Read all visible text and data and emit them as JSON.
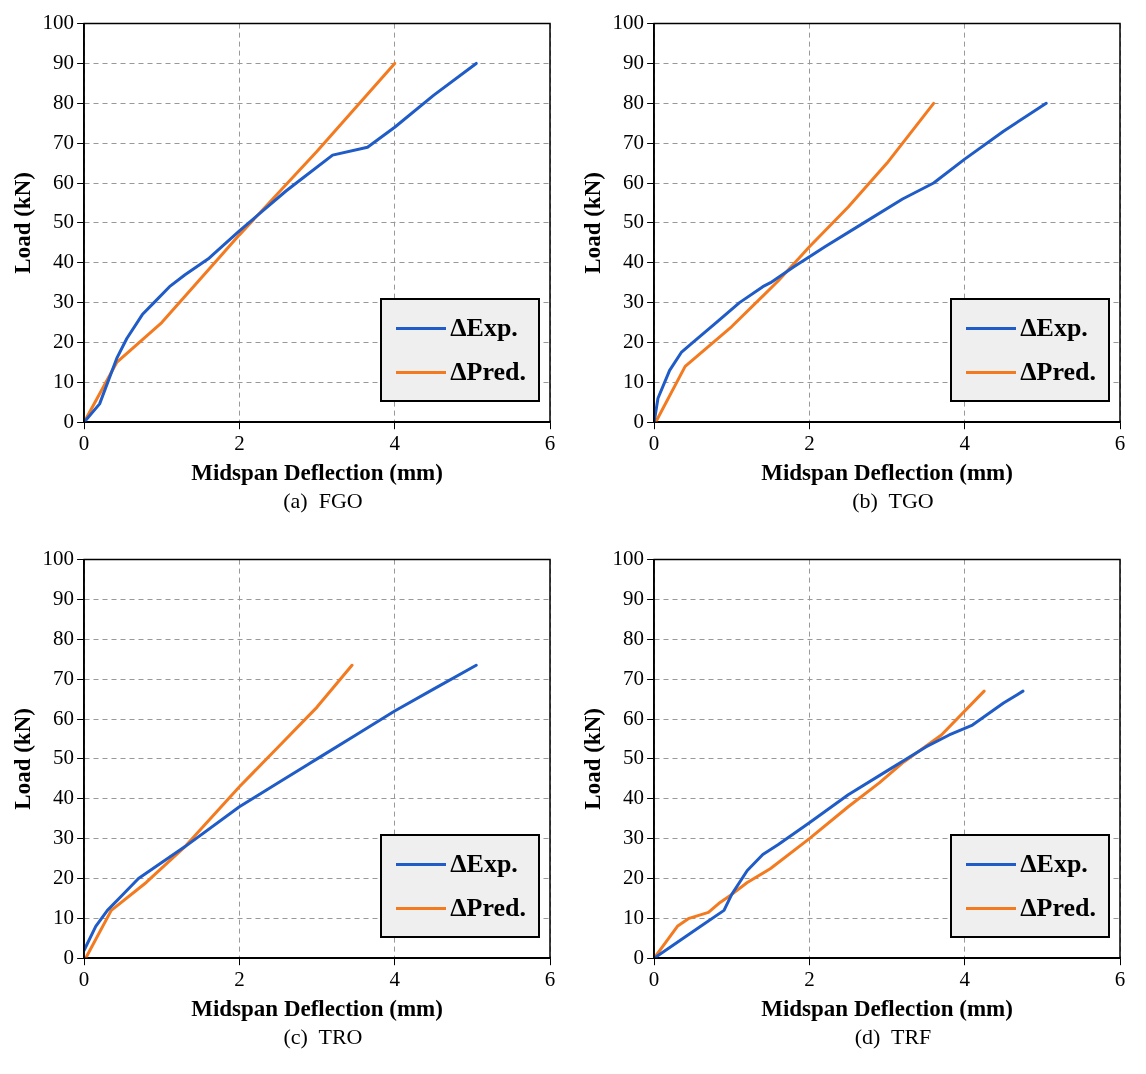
{
  "chart_data": [
    {
      "type": "line",
      "xlabel": "Midspan Deflection (mm)",
      "ylabel": "Load (kN)",
      "annotations": [
        "(a)  FGO"
      ],
      "xlim": [
        0,
        6
      ],
      "xticks": [
        0,
        2,
        4,
        6
      ],
      "ylim": [
        0,
        100
      ],
      "yticks": [
        0,
        10,
        20,
        30,
        40,
        50,
        60,
        70,
        80,
        90,
        100
      ],
      "grid": true,
      "legend": "bottom right",
      "series": [
        {
          "name": "ΔExp.",
          "color": "#1f5cc8",
          "x": [
            0,
            0.2,
            0.42,
            0.55,
            0.75,
            0.9,
            1.1,
            1.3,
            1.6,
            2.0,
            2.3,
            2.6,
            2.8,
            3.2,
            3.65,
            4.0,
            4.5,
            5.05
          ],
          "values": [
            0,
            4.6,
            16,
            21,
            27,
            30,
            34,
            37,
            41,
            48,
            53,
            58,
            61,
            67,
            69,
            74,
            82,
            90
          ]
        },
        {
          "name": "ΔPred.",
          "color": "#f47a20",
          "x": [
            0,
            0.42,
            1.0,
            2.0,
            3.0,
            4.0
          ],
          "values": [
            0,
            15,
            25,
            47,
            68,
            90
          ]
        }
      ]
    },
    {
      "type": "line",
      "xlabel": "Midspan Deflection (mm)",
      "ylabel": "Load (kN)",
      "annotations": [
        "(b)  TGO"
      ],
      "xlim": [
        0,
        6
      ],
      "xticks": [
        0,
        2,
        4,
        6
      ],
      "ylim": [
        0,
        100
      ],
      "yticks": [
        0,
        10,
        20,
        30,
        40,
        50,
        60,
        70,
        80,
        90,
        100
      ],
      "grid": true,
      "legend": "bottom right",
      "series": [
        {
          "name": "ΔExp.",
          "color": "#1f5cc8",
          "x": [
            0,
            0.05,
            0.2,
            0.35,
            0.5,
            0.8,
            1.1,
            1.4,
            1.5,
            1.8,
            2.2,
            2.7,
            3.2,
            3.6,
            4.0,
            4.5,
            5.05
          ],
          "values": [
            0,
            6,
            13,
            17.5,
            20,
            25,
            30,
            34,
            35,
            39,
            44,
            50,
            56,
            60,
            66,
            73,
            80
          ]
        },
        {
          "name": "ΔPred.",
          "color": "#f47a20",
          "x": [
            0.02,
            0.4,
            1.0,
            1.6,
            2.0,
            2.5,
            3.0,
            3.6
          ],
          "values": [
            0,
            14,
            24,
            35.5,
            44,
            54,
            65,
            80
          ]
        }
      ]
    },
    {
      "type": "line",
      "xlabel": "Midspan Deflection (mm)",
      "ylabel": "Load (kN)",
      "annotations": [
        "(c)  TRO"
      ],
      "xlim": [
        0,
        6
      ],
      "xticks": [
        0,
        2,
        4,
        6
      ],
      "ylim": [
        0,
        100
      ],
      "yticks": [
        0,
        10,
        20,
        30,
        40,
        50,
        60,
        70,
        80,
        90,
        100
      ],
      "grid": true,
      "legend": "bottom right",
      "series": [
        {
          "name": "ΔExp.",
          "color": "#1f5cc8",
          "x": [
            0,
            0.15,
            0.3,
            0.5,
            0.7,
            1.0,
            1.3,
            2.0,
            2.5,
            3.0,
            3.5,
            4.0,
            4.5,
            5.05
          ],
          "values": [
            2,
            8,
            12,
            16,
            20,
            24,
            28,
            38,
            44,
            50,
            56,
            62,
            67.5,
            73.5
          ]
        },
        {
          "name": "ΔPred.",
          "color": "#f47a20",
          "x": [
            0.02,
            0.35,
            0.8,
            1.3,
            2.0,
            2.5,
            3.0,
            3.45
          ],
          "values": [
            0,
            12,
            19,
            28,
            43,
            53,
            63,
            73.5
          ]
        }
      ]
    },
    {
      "type": "line",
      "xlabel": "Midspan Deflection (mm)",
      "ylabel": "Load (kN)",
      "annotations": [
        "(d)  TRF"
      ],
      "xlim": [
        0,
        6
      ],
      "xticks": [
        0,
        2,
        4,
        6
      ],
      "ylim": [
        0,
        100
      ],
      "yticks": [
        0,
        10,
        20,
        30,
        40,
        50,
        60,
        70,
        80,
        90,
        100
      ],
      "grid": true,
      "legend": "bottom right",
      "series": [
        {
          "name": "ΔExp.",
          "color": "#1f5cc8",
          "x": [
            0,
            0.3,
            0.6,
            0.9,
            1.0,
            1.2,
            1.4,
            1.6,
            2.0,
            2.5,
            3.0,
            3.5,
            3.8,
            4.1,
            4.5,
            4.75
          ],
          "values": [
            0,
            4,
            8,
            12,
            16,
            22,
            26,
            28.5,
            34,
            41,
            47,
            53,
            56,
            58.5,
            64,
            67
          ]
        },
        {
          "name": "ΔPred.",
          "color": "#f47a20",
          "x": [
            0,
            0.3,
            0.45,
            0.7,
            0.85,
            1.0,
            1.2,
            1.5,
            2.0,
            2.5,
            2.9,
            3.2,
            3.7,
            4.25
          ],
          "values": [
            0,
            8,
            10,
            11.5,
            14,
            16,
            19,
            22.5,
            30,
            38,
            44,
            49,
            56,
            67
          ]
        }
      ]
    }
  ]
}
